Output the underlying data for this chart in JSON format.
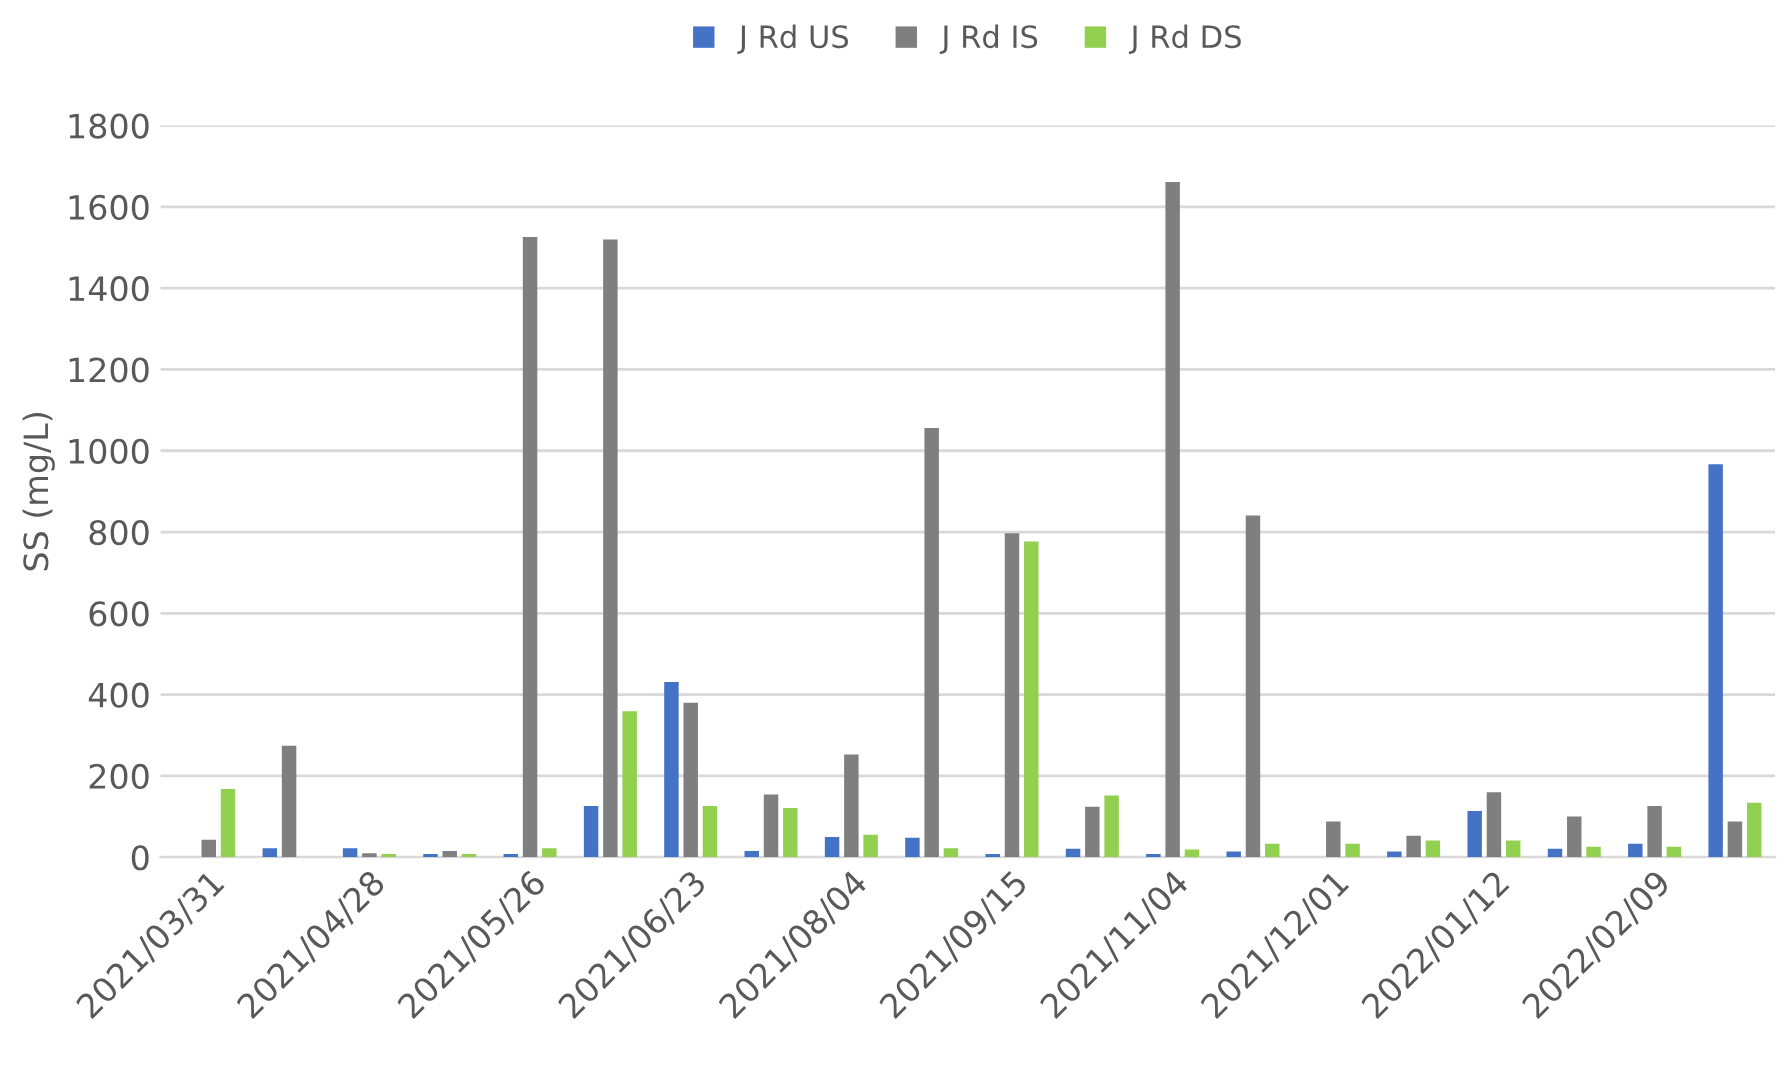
{
  "chart_data": {
    "type": "bar",
    "ylabel": "SS (mg/L)",
    "categories": [
      "2021/03/31",
      null,
      "2021/04/28",
      null,
      "2021/05/26",
      null,
      "2021/06/23",
      null,
      "2021/08/04",
      null,
      "2021/09/15",
      null,
      "2021/11/04",
      null,
      "2021/12/01",
      null,
      "2022/01/12",
      null,
      "2022/02/09",
      null
    ],
    "series": [
      {
        "name": "J Rd US",
        "color": "#4472c4",
        "values": [
          null,
          22,
          22,
          8,
          8,
          126,
          431,
          15,
          50,
          48,
          8,
          21,
          8,
          14,
          null,
          14,
          114,
          21,
          33,
          967
        ]
      },
      {
        "name": "J Rd IS",
        "color": "#7f7f7f",
        "values": [
          43,
          274,
          10,
          15,
          1526,
          1520,
          380,
          154,
          253,
          1056,
          797,
          124,
          1661,
          841,
          88,
          53,
          160,
          100,
          126,
          88
        ]
      },
      {
        "name": "J Rd DS",
        "color": "#92d050",
        "values": [
          168,
          null,
          8,
          8,
          22,
          359,
          126,
          121,
          55,
          22,
          777,
          152,
          19,
          33,
          33,
          41,
          41,
          26,
          26,
          134
        ]
      }
    ],
    "ylim": [
      0,
      1800
    ],
    "yticks": [
      0,
      200,
      400,
      600,
      800,
      1000,
      1200,
      1400,
      1600,
      1800
    ],
    "grid": "y",
    "legend": "top"
  }
}
